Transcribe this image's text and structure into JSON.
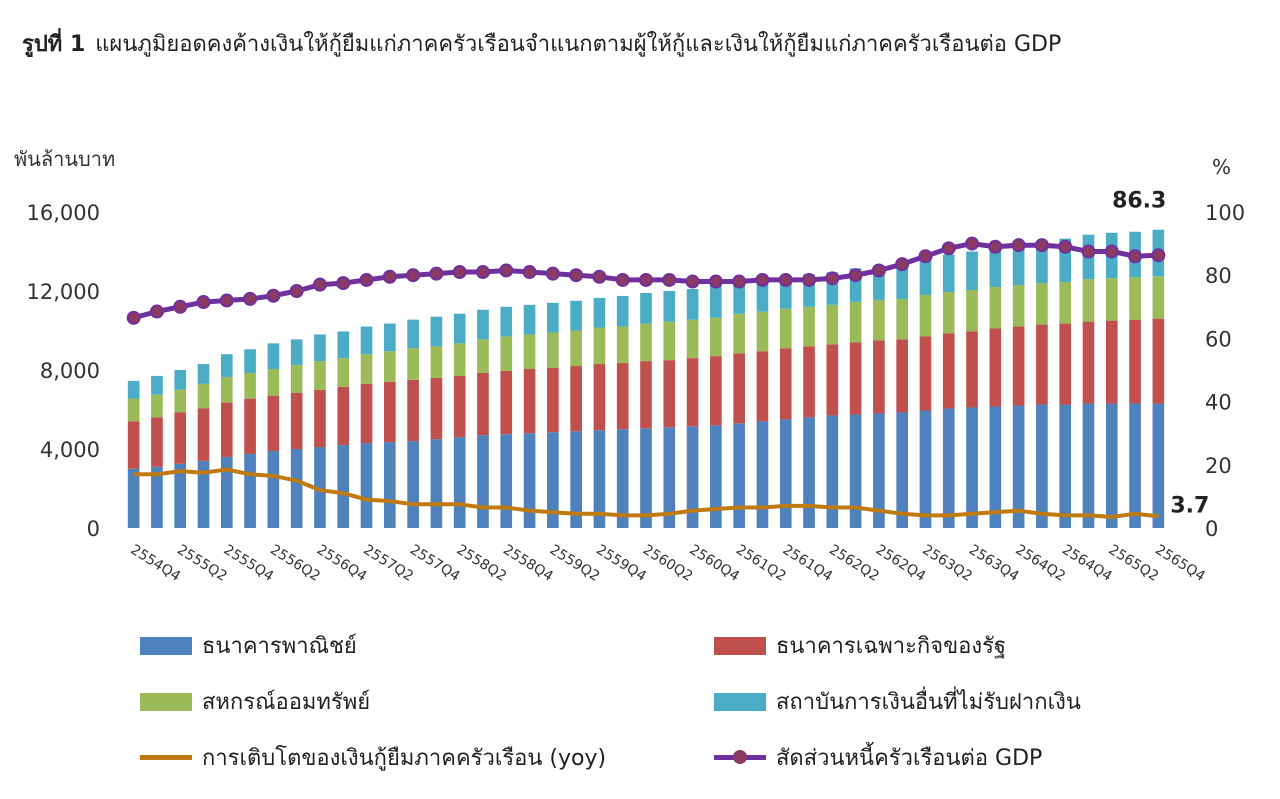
{
  "title": {
    "number": "รูปที่ 1",
    "text": "แผนภูมิยอดคงค้างเงินให้กู้ยืมแก่ภาคครัวเรือนจำแนกตามผู้ให้กู้และเงินให้กู้ยืมแก่ภาคครัวเรือนต่อ GDP"
  },
  "chart_data": {
    "type": "bar",
    "stacked": true,
    "left_unit": "พันล้านบาท",
    "right_unit": "%",
    "left_ylim": [
      0,
      16000
    ],
    "left_ticks": [
      "0",
      "4,000",
      "8,000",
      "12,000",
      "16,000"
    ],
    "right_ylim": [
      0,
      100
    ],
    "right_ticks": [
      "0",
      "20",
      "40",
      "60",
      "80",
      "100"
    ],
    "x_tick_labels": [
      "2554Q4",
      "2555Q2",
      "2555Q4",
      "2556Q2",
      "2556Q4",
      "2557Q2",
      "2557Q4",
      "2558Q2",
      "2558Q4",
      "2559Q2",
      "2559Q4",
      "2560Q2",
      "2560Q4",
      "2561Q2",
      "2561Q4",
      "2562Q2",
      "2562Q4",
      "2563Q2",
      "2563Q4",
      "2564Q2",
      "2564Q4",
      "2565Q2",
      "2565Q4"
    ],
    "categories": [
      "2554Q4",
      "2555Q1",
      "2555Q2",
      "2555Q3",
      "2555Q4",
      "2556Q1",
      "2556Q2",
      "2556Q3",
      "2556Q4",
      "2557Q1",
      "2557Q2",
      "2557Q3",
      "2557Q4",
      "2558Q1",
      "2558Q2",
      "2558Q3",
      "2558Q4",
      "2559Q1",
      "2559Q2",
      "2559Q3",
      "2559Q4",
      "2560Q1",
      "2560Q2",
      "2560Q3",
      "2560Q4",
      "2561Q1",
      "2561Q2",
      "2561Q3",
      "2561Q4",
      "2562Q1",
      "2562Q2",
      "2562Q3",
      "2562Q4",
      "2563Q1",
      "2563Q2",
      "2563Q3",
      "2563Q4",
      "2564Q1",
      "2564Q2",
      "2564Q3",
      "2564Q4",
      "2565Q1",
      "2565Q2",
      "2565Q3",
      "2565Q4"
    ],
    "series": [
      {
        "name": "ธนาคารพาณิชย์",
        "type": "bar",
        "axis": "left",
        "color": "#4f81bd",
        "values": [
          3000,
          3100,
          3250,
          3400,
          3600,
          3750,
          3900,
          4000,
          4100,
          4200,
          4300,
          4350,
          4400,
          4500,
          4600,
          4700,
          4750,
          4800,
          4850,
          4900,
          4950,
          5000,
          5050,
          5100,
          5150,
          5200,
          5300,
          5400,
          5500,
          5600,
          5700,
          5750,
          5800,
          5850,
          5950,
          6050,
          6100,
          6150,
          6200,
          6250,
          6250,
          6300,
          6300,
          6300,
          6300
        ]
      },
      {
        "name": "ธนาคารเฉพาะกิจของรัฐ",
        "type": "bar",
        "axis": "left",
        "color": "#c0504d",
        "values": [
          2400,
          2500,
          2600,
          2650,
          2750,
          2800,
          2800,
          2850,
          2900,
          2950,
          3000,
          3050,
          3100,
          3100,
          3100,
          3150,
          3200,
          3250,
          3250,
          3300,
          3350,
          3350,
          3400,
          3400,
          3450,
          3500,
          3550,
          3550,
          3600,
          3600,
          3600,
          3650,
          3700,
          3700,
          3750,
          3800,
          3850,
          3950,
          4000,
          4050,
          4100,
          4150,
          4200,
          4250,
          4300
        ]
      },
      {
        "name": "สหกรณ์ออมทรัพย์",
        "type": "bar",
        "axis": "left",
        "color": "#9bbb59",
        "values": [
          1150,
          1150,
          1150,
          1250,
          1300,
          1300,
          1350,
          1400,
          1450,
          1450,
          1500,
          1550,
          1600,
          1600,
          1650,
          1700,
          1750,
          1750,
          1800,
          1800,
          1850,
          1850,
          1900,
          1950,
          1950,
          1950,
          2000,
          2000,
          2000,
          2000,
          2000,
          2050,
          2050,
          2050,
          2100,
          2100,
          2100,
          2100,
          2100,
          2100,
          2100,
          2150,
          2150,
          2150,
          2150
        ]
      },
      {
        "name": "สถาบันการเงินอื่นที่ไม่รับฝากเงิน",
        "type": "bar",
        "axis": "left",
        "color": "#4bacc6",
        "values": [
          900,
          950,
          1000,
          1000,
          1150,
          1200,
          1300,
          1300,
          1350,
          1350,
          1400,
          1400,
          1450,
          1500,
          1500,
          1500,
          1500,
          1500,
          1500,
          1500,
          1500,
          1550,
          1550,
          1550,
          1550,
          1600,
          1650,
          1650,
          1650,
          1650,
          1650,
          1700,
          1750,
          1800,
          1900,
          1900,
          1950,
          2000,
          2100,
          2150,
          2200,
          2250,
          2300,
          2300,
          2350
        ]
      },
      {
        "name": "การเติบโตของเงินกู้ยืมภาคครัวเรือน (yoy)",
        "type": "line",
        "axis": "right",
        "color": "#c07a10",
        "values": [
          17.0,
          17.0,
          18.0,
          17.5,
          18.5,
          17.0,
          16.5,
          15.0,
          12.0,
          11.0,
          9.0,
          8.5,
          7.5,
          7.5,
          7.5,
          6.5,
          6.5,
          5.5,
          5.0,
          4.5,
          4.5,
          4.0,
          4.0,
          4.5,
          5.5,
          6.0,
          6.5,
          6.5,
          7.0,
          7.0,
          6.5,
          6.5,
          5.5,
          4.5,
          4.0,
          4.0,
          4.5,
          5.0,
          5.5,
          4.5,
          4.0,
          4.0,
          3.5,
          4.5,
          3.7
        ]
      },
      {
        "name": "สัดส่วนหนี้ครัวเรือนต่อ GDP",
        "type": "line",
        "axis": "right",
        "color": "#7030a0",
        "marker_color": "#8b3a62",
        "values": [
          66.5,
          68.5,
          70.0,
          71.5,
          72.0,
          72.5,
          73.5,
          75.0,
          77.0,
          77.5,
          78.5,
          79.5,
          80.0,
          80.5,
          81.0,
          81.0,
          81.5,
          81.0,
          80.5,
          80.0,
          79.5,
          78.5,
          78.5,
          78.5,
          78.0,
          78.0,
          78.0,
          78.5,
          78.5,
          78.5,
          79.0,
          80.0,
          81.5,
          83.5,
          86.0,
          88.5,
          90.0,
          89.0,
          89.5,
          89.5,
          89.0,
          87.5,
          87.5,
          86.0,
          86.3
        ]
      }
    ],
    "annotations": [
      {
        "text": "86.3",
        "series": "สัดส่วนหนี้ครัวเรือนต่อ GDP"
      },
      {
        "text": "3.7",
        "series": "การเติบโตของเงินกู้ยืมภาคครัวเรือน (yoy)"
      }
    ],
    "legend_position": "bottom",
    "grid": false
  }
}
